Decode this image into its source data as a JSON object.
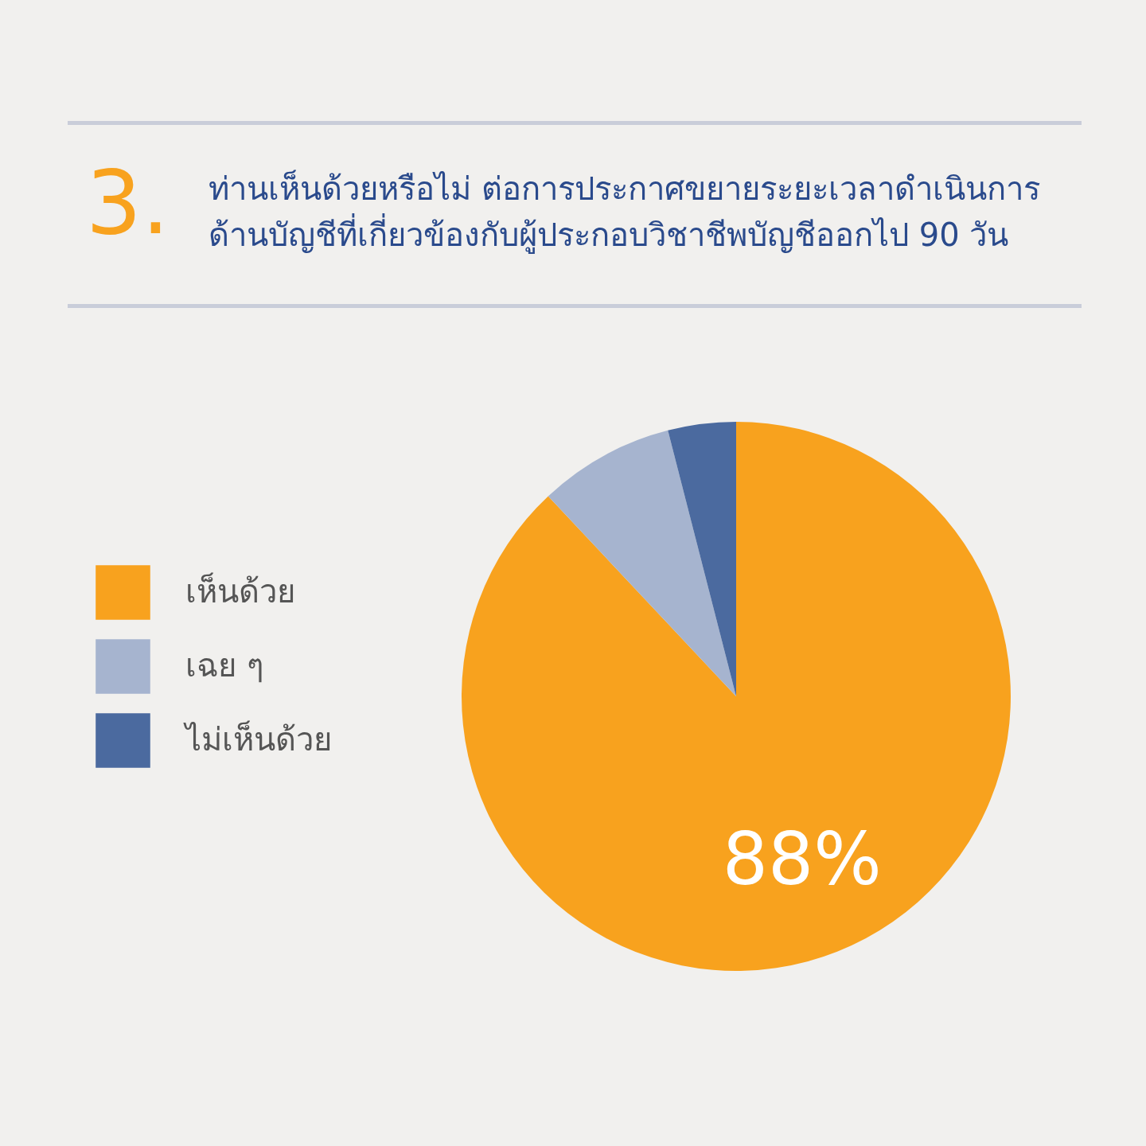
{
  "chart_data": {
    "type": "pie",
    "title": "ท่านเห็นด้วยหรือไม่ ต่อการประกาศขยายระยะเวลาดำเนินการด้านบัญชีที่เกี่ยวข้องกับผู้ประกอบวิชาชีพบัญชีออกไป 90 วัน",
    "annotations": [
      "3."
    ],
    "categories": [
      "เห็นด้วย",
      "เฉย ๆ",
      "ไม่เห็นด้วย"
    ],
    "values": [
      88,
      8,
      4
    ],
    "colors": [
      "#f8a21e",
      "#a6b4cf",
      "#4b6a9f"
    ],
    "value_labels": [
      "88%",
      null,
      null
    ],
    "legend": "left"
  }
}
